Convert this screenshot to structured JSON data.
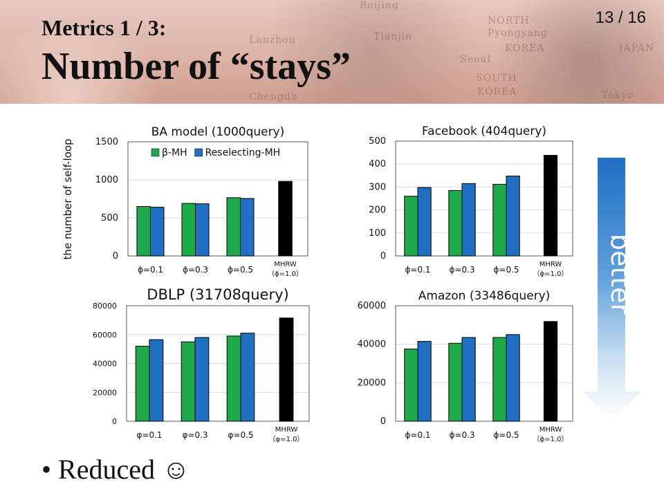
{
  "header": {
    "slide_number": "13 / 16",
    "title_line1": "Metrics 1 / 3:",
    "title_line2": "Number of “stays”",
    "map_words": [
      "Beijing",
      "NORTH",
      "Pyongyang",
      "KOREA",
      "JAPAN",
      "Tianjin",
      "Lanzhou",
      "Seoul",
      "SOUTH",
      "KOREA",
      "Chengdu",
      "Tokyo"
    ]
  },
  "ylabel": "the number of self-loop",
  "better_label": "better",
  "bullet": {
    "text": "Reduced ☺"
  },
  "chart_data": [
    {
      "type": "bar",
      "title": "BA model (1000query)",
      "categories": [
        "ϕ=0.1",
        "ϕ=0.3",
        "ϕ=0.5",
        "MHRW"
      ],
      "category_sublabel": "（ϕ=1.0）",
      "ylim": [
        0,
        1500
      ],
      "yticks": [
        0,
        500,
        1000,
        1500
      ],
      "series": [
        {
          "name": "β-MH",
          "color": "#1faa4a",
          "values": [
            650,
            690,
            765,
            null
          ]
        },
        {
          "name": "Reselecting-MH",
          "color": "#1f6fc3",
          "values": [
            640,
            685,
            755,
            null
          ]
        },
        {
          "name": "",
          "color": "#000000",
          "values": [
            null,
            null,
            null,
            980
          ]
        }
      ],
      "legend": "top"
    },
    {
      "type": "bar",
      "title": "Facebook (404query)",
      "categories": [
        "ϕ=0.1",
        "ϕ=0.3",
        "ϕ=0.5",
        "MHRW"
      ],
      "category_sublabel": "（ϕ=1.0）",
      "ylim": [
        0,
        500
      ],
      "yticks": [
        0,
        100,
        200,
        300,
        400,
        500
      ],
      "series": [
        {
          "name": "β-MH",
          "color": "#1faa4a",
          "values": [
            260,
            285,
            312,
            null
          ]
        },
        {
          "name": "Reselecting-MH",
          "color": "#1f6fc3",
          "values": [
            298,
            315,
            348,
            null
          ]
        },
        {
          "name": "",
          "color": "#000000",
          "values": [
            null,
            null,
            null,
            438
          ]
        }
      ]
    },
    {
      "type": "bar",
      "title": "DBLP (31708query)",
      "categories": [
        "φ=0.1",
        "φ=0.3",
        "φ=0.5",
        "MHRW"
      ],
      "category_sublabel": "（φ=1.0）",
      "ylim": [
        0,
        80000
      ],
      "yticks": [
        0,
        20000,
        40000,
        60000,
        80000
      ],
      "series": [
        {
          "name": "β-MH",
          "color": "#1faa4a",
          "values": [
            52000,
            55000,
            59000,
            null
          ]
        },
        {
          "name": "Reselecting-MH",
          "color": "#1f6fc3",
          "values": [
            56500,
            58000,
            61000,
            null
          ]
        },
        {
          "name": "",
          "color": "#000000",
          "values": [
            null,
            null,
            null,
            71500
          ]
        }
      ]
    },
    {
      "type": "bar",
      "title": "Amazon (33486query)",
      "categories": [
        "ϕ=0.1",
        "ϕ=0.3",
        "ϕ=0.5",
        "MHRW"
      ],
      "category_sublabel": "（ϕ=1.0）",
      "ylim": [
        0,
        60000
      ],
      "yticks": [
        0,
        20000,
        40000,
        60000
      ],
      "series": [
        {
          "name": "β-MH",
          "color": "#1faa4a",
          "values": [
            37500,
            40500,
            43500,
            null
          ]
        },
        {
          "name": "Reselecting-MH",
          "color": "#1f6fc3",
          "values": [
            41500,
            43500,
            45000,
            null
          ]
        },
        {
          "name": "",
          "color": "#000000",
          "values": [
            null,
            null,
            null,
            51800
          ]
        }
      ]
    }
  ]
}
